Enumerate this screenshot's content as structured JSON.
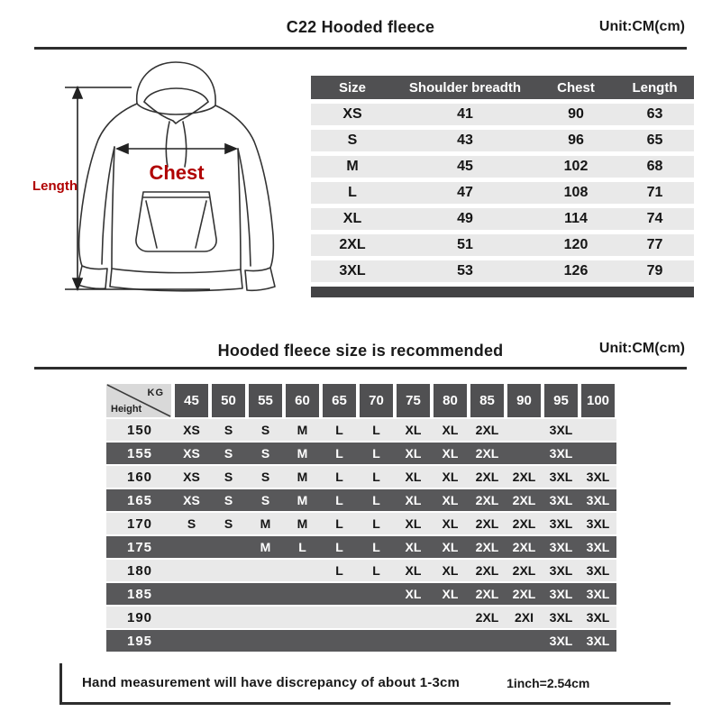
{
  "header": {
    "title": "C22 Hooded fleece",
    "unit": "Unit:CM(cm)"
  },
  "diagram": {
    "chest_label": "Chest",
    "length_label": "Length"
  },
  "size_table": {
    "columns": [
      "Size",
      "Shoulder breadth",
      "Chest",
      "Length"
    ],
    "rows": [
      [
        "XS",
        "41",
        "90",
        "63"
      ],
      [
        "S",
        "43",
        "96",
        "65"
      ],
      [
        "M",
        "45",
        "102",
        "68"
      ],
      [
        "L",
        "47",
        "108",
        "71"
      ],
      [
        "XL",
        "49",
        "114",
        "74"
      ],
      [
        "2XL",
        "51",
        "120",
        "77"
      ],
      [
        "3XL",
        "53",
        "126",
        "79"
      ]
    ]
  },
  "section2": {
    "title": "Hooded fleece size is recommended",
    "unit": "Unit:CM(cm)"
  },
  "size_matrix": {
    "corner_top": "KG",
    "corner_bottom": "Height",
    "weight_headers": [
      "45",
      "50",
      "55",
      "60",
      "65",
      "70",
      "75",
      "80",
      "85",
      "90",
      "95",
      "100"
    ],
    "rows": [
      {
        "height": "150",
        "cells": [
          "XS",
          "S",
          "S",
          "M",
          "L",
          "L",
          "XL",
          "XL",
          "2XL",
          "",
          "3XL",
          ""
        ]
      },
      {
        "height": "155",
        "cells": [
          "XS",
          "S",
          "S",
          "M",
          "L",
          "L",
          "XL",
          "XL",
          "2XL",
          "",
          "3XL",
          ""
        ]
      },
      {
        "height": "160",
        "cells": [
          "XS",
          "S",
          "S",
          "M",
          "L",
          "L",
          "XL",
          "XL",
          "2XL",
          "2XL",
          "3XL",
          "3XL"
        ]
      },
      {
        "height": "165",
        "cells": [
          "XS",
          "S",
          "S",
          "M",
          "L",
          "L",
          "XL",
          "XL",
          "2XL",
          "2XL",
          "3XL",
          "3XL"
        ]
      },
      {
        "height": "170",
        "cells": [
          "S",
          "S",
          "M",
          "M",
          "L",
          "L",
          "XL",
          "XL",
          "2XL",
          "2XL",
          "3XL",
          "3XL"
        ]
      },
      {
        "height": "175",
        "cells": [
          "",
          "",
          "M",
          "L",
          "L",
          "L",
          "XL",
          "XL",
          "2XL",
          "2XL",
          "3XL",
          "3XL"
        ]
      },
      {
        "height": "180",
        "cells": [
          "",
          "",
          "",
          "",
          "L",
          "L",
          "XL",
          "XL",
          "2XL",
          "2XL",
          "3XL",
          "3XL"
        ]
      },
      {
        "height": "185",
        "cells": [
          "",
          "",
          "",
          "",
          "",
          "",
          "XL",
          "XL",
          "2XL",
          "2XL",
          "3XL",
          "3XL"
        ]
      },
      {
        "height": "190",
        "cells": [
          "",
          "",
          "",
          "",
          "",
          "",
          "",
          "",
          "2XL",
          "2XI",
          "3XL",
          "3XL"
        ]
      },
      {
        "height": "195",
        "cells": [
          "",
          "",
          "",
          "",
          "",
          "",
          "",
          "",
          "",
          "",
          "3XL",
          "3XL"
        ]
      }
    ]
  },
  "footer": {
    "note": "Hand measurement will have discrepancy of about 1-3cm",
    "conversion": "1inch=2.54cm"
  },
  "colors": {
    "dark_header": "#505052",
    "dark_row": "#58585a",
    "light_row": "#e9e9e9",
    "accent_red": "#b00000",
    "line": "#2d2d2d"
  }
}
